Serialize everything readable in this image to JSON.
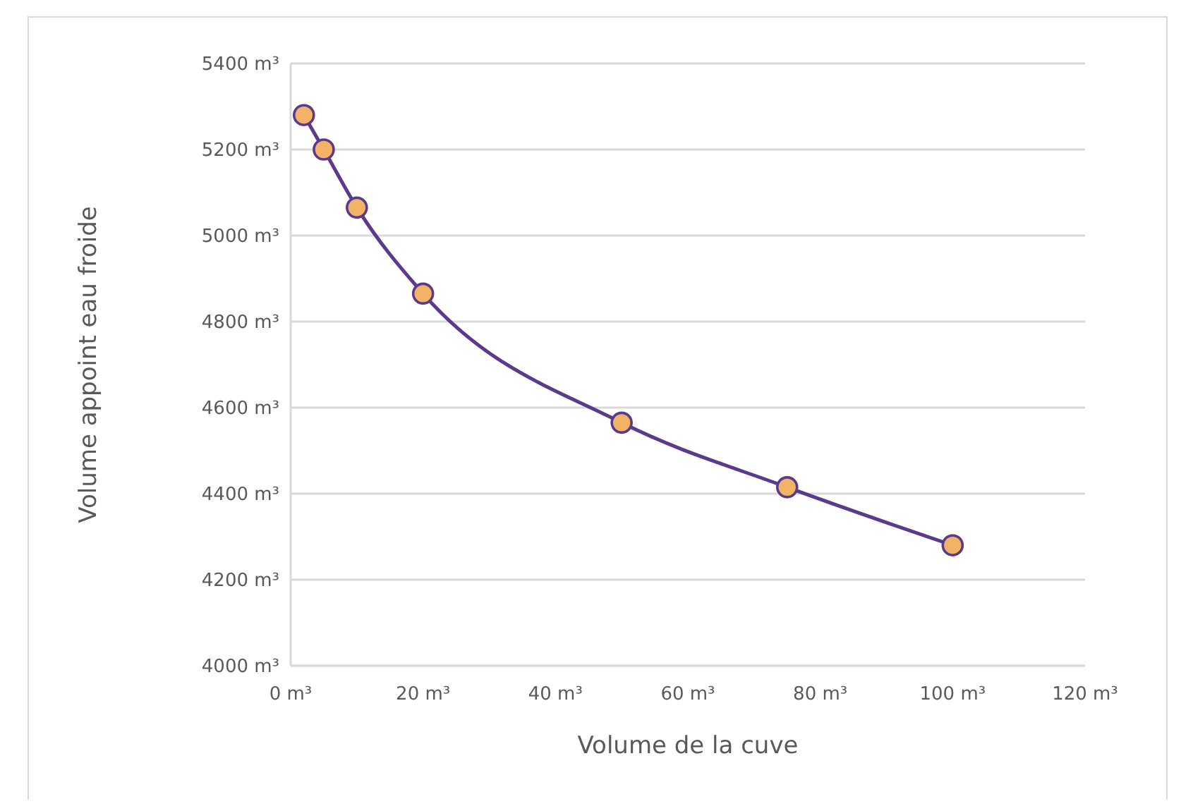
{
  "chart_data": {
    "type": "line",
    "xlabel": "Volume de la cuve",
    "ylabel": "Volume appoint eau froide",
    "x": [
      2,
      5,
      10,
      20,
      50,
      75,
      100
    ],
    "series": [
      {
        "color": "#5a3a8c",
        "values": [
          5280,
          5200,
          5065,
          4865,
          4565,
          4415,
          4280
        ]
      }
    ],
    "xlim": [
      0,
      120
    ],
    "xticks": [
      {
        "value": 0,
        "label": "0 m³"
      },
      {
        "value": 20,
        "label": "20 m³"
      },
      {
        "value": 40,
        "label": "40 m³"
      },
      {
        "value": 60,
        "label": "60 m³"
      },
      {
        "value": 80,
        "label": "80 m³"
      },
      {
        "value": 100,
        "label": "100 m³"
      },
      {
        "value": 120,
        "label": "120 m³"
      }
    ],
    "ylim": [
      4000,
      5400
    ],
    "yticks": [
      {
        "value": 4000,
        "label": "4000 m³"
      },
      {
        "value": 4200,
        "label": "4200 m³"
      },
      {
        "value": 4400,
        "label": "4400 m³"
      },
      {
        "value": 4600,
        "label": "4600 m³"
      },
      {
        "value": 4800,
        "label": "4800 m³"
      },
      {
        "value": 5000,
        "label": "5000 m³"
      },
      {
        "value": 5200,
        "label": "5200 m³"
      },
      {
        "value": 5400,
        "label": "5400 m³"
      }
    ],
    "grid": "y",
    "marker": "circle",
    "line_style": "solid"
  }
}
